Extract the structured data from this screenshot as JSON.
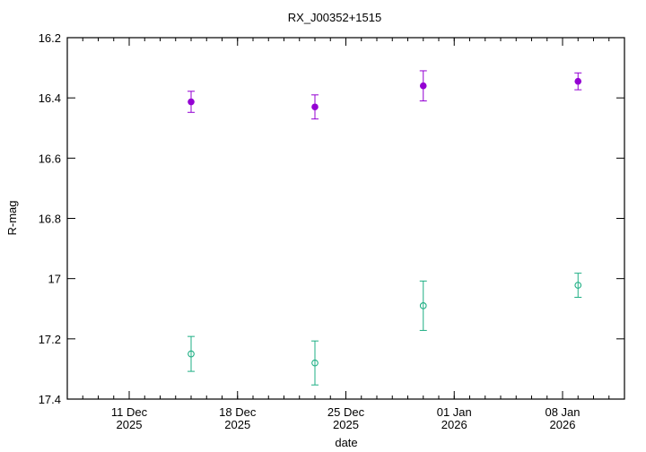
{
  "chart_data": {
    "type": "scatter",
    "title": "RX_J00352+1515",
    "xlabel": "date",
    "ylabel": "R-mag",
    "x_range": [
      "2025-12-07",
      "2026-01-12"
    ],
    "ylim": [
      16.2,
      17.4
    ],
    "y_inverted": true,
    "y_ticks": [
      "16.2",
      "16.4",
      "16.6",
      "16.8",
      "17",
      "17.2",
      "17.4"
    ],
    "x_ticks": [
      {
        "date": "2025-12-11",
        "day": "11 Dec",
        "year": "2025"
      },
      {
        "date": "2025-12-18",
        "day": "18 Dec",
        "year": "2025"
      },
      {
        "date": "2025-12-25",
        "day": "25 Dec",
        "year": "2025"
      },
      {
        "date": "2026-01-01",
        "day": "01 Jan",
        "year": "2026"
      },
      {
        "date": "2026-01-08",
        "day": "08 Jan",
        "year": "2026"
      }
    ],
    "grid": false,
    "series": [
      {
        "marker": "filled-circle",
        "color": "#9400D3",
        "points": [
          {
            "x": "2025-12-15",
            "y": 16.413,
            "err": 0.035
          },
          {
            "x": "2025-12-23",
            "y": 16.43,
            "err": 0.04
          },
          {
            "x": "2025-12-30",
            "y": 16.36,
            "err": 0.05
          },
          {
            "x": "2026-01-09",
            "y": 16.345,
            "err": 0.028
          }
        ]
      },
      {
        "marker": "open-circle",
        "color": "#1FAF84",
        "points": [
          {
            "x": "2025-12-15",
            "y": 17.25,
            "err": 0.058
          },
          {
            "x": "2025-12-23",
            "y": 17.28,
            "err": 0.073
          },
          {
            "x": "2025-12-30",
            "y": 17.09,
            "err": 0.082
          },
          {
            "x": "2026-01-09",
            "y": 17.022,
            "err": 0.04
          }
        ]
      }
    ]
  }
}
